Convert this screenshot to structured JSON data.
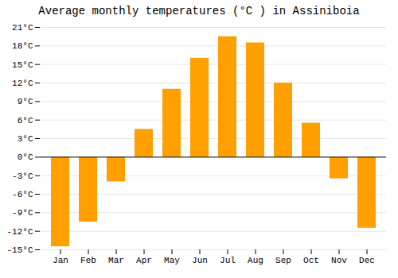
{
  "chart_data": {
    "type": "bar",
    "title": "Average monthly temperatures (°C ) in Assiniboia",
    "categories": [
      "Jan",
      "Feb",
      "Mar",
      "Apr",
      "May",
      "Jun",
      "Jul",
      "Aug",
      "Sep",
      "Oct",
      "Nov",
      "Dec"
    ],
    "values": [
      -14.5,
      -10.5,
      -4.0,
      4.5,
      11.0,
      16.0,
      19.5,
      18.5,
      12.0,
      5.5,
      -3.5,
      -11.5
    ],
    "color": "#FFA000",
    "ylim": [
      -15,
      21
    ],
    "yticks": [
      {
        "value": -15,
        "label": "-15°C"
      },
      {
        "value": -12,
        "label": "-12°C"
      },
      {
        "value": -9,
        "label": "-9°C"
      },
      {
        "value": -6,
        "label": "-6°C"
      },
      {
        "value": -3,
        "label": "-3°C"
      },
      {
        "value": 0,
        "label": "0°C"
      },
      {
        "value": 3,
        "label": "3°C"
      },
      {
        "value": 6,
        "label": "6°C"
      },
      {
        "value": 9,
        "label": "9°C"
      },
      {
        "value": 12,
        "label": "12°C"
      },
      {
        "value": 15,
        "label": "15°C"
      },
      {
        "value": 18,
        "label": "18°C"
      },
      {
        "value": 21,
        "label": "21°C"
      }
    ],
    "grid": true
  }
}
